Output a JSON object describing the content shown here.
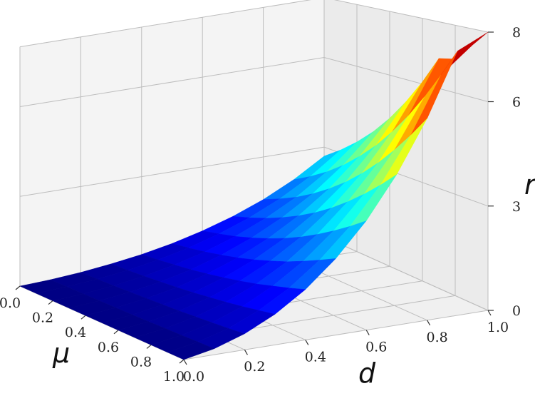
{
  "chart_data": {
    "type": "surface3d",
    "title": "",
    "xlabel": "d",
    "ylabel": "μ",
    "zlabel": "r",
    "x_ticks": [
      "0.0",
      "0.2",
      "0.4",
      "0.6",
      "0.8",
      "1.0"
    ],
    "y_ticks": [
      "0.0",
      "0.2",
      "0.4",
      "0.6",
      "0.8",
      "1.0"
    ],
    "z_ticks": [
      "0",
      "3",
      "6",
      "8"
    ],
    "xlim": [
      0,
      1
    ],
    "ylim": [
      0,
      1
    ],
    "zlim": [
      0,
      8
    ],
    "colormap": "jet",
    "grid": true,
    "x": [
      0.0,
      0.1,
      0.2,
      0.3,
      0.4,
      0.5,
      0.6,
      0.7,
      0.8,
      0.9,
      1.0
    ],
    "y": [
      0.0,
      0.1,
      0.2,
      0.3,
      0.4,
      0.5,
      0.6,
      0.7,
      0.8,
      0.9,
      1.0
    ],
    "z": [
      [
        0.0,
        0.05,
        0.13,
        0.25,
        0.4,
        0.6,
        0.86,
        1.18,
        1.58,
        2.08,
        2.7
      ],
      [
        0.0,
        0.06,
        0.15,
        0.28,
        0.46,
        0.69,
        0.99,
        1.36,
        1.82,
        2.39,
        3.1
      ],
      [
        0.0,
        0.07,
        0.17,
        0.32,
        0.53,
        0.79,
        1.13,
        1.56,
        2.08,
        2.74,
        3.55
      ],
      [
        0.0,
        0.08,
        0.2,
        0.37,
        0.6,
        0.91,
        1.3,
        1.79,
        2.39,
        3.14,
        4.06
      ],
      [
        0.0,
        0.09,
        0.23,
        0.42,
        0.69,
        1.04,
        1.49,
        2.05,
        2.74,
        3.6,
        4.65
      ],
      [
        0.0,
        0.1,
        0.26,
        0.48,
        0.79,
        1.19,
        1.7,
        2.34,
        3.13,
        4.11,
        5.32
      ],
      [
        0.0,
        0.11,
        0.29,
        0.55,
        0.9,
        1.36,
        1.94,
        2.67,
        3.57,
        4.69,
        6.07
      ],
      [
        0.0,
        0.13,
        0.33,
        0.62,
        1.02,
        1.54,
        2.21,
        3.04,
        4.06,
        5.33,
        6.9
      ],
      [
        0.0,
        0.14,
        0.37,
        0.7,
        1.16,
        1.75,
        2.5,
        3.44,
        4.6,
        6.04,
        7.0
      ],
      [
        0.0,
        0.16,
        0.41,
        0.79,
        1.3,
        1.97,
        2.81,
        3.87,
        5.18,
        6.8,
        7.5
      ],
      [
        0.0,
        0.17,
        0.46,
        0.88,
        1.45,
        2.2,
        3.14,
        4.33,
        5.8,
        7.6,
        8.0
      ]
    ]
  }
}
